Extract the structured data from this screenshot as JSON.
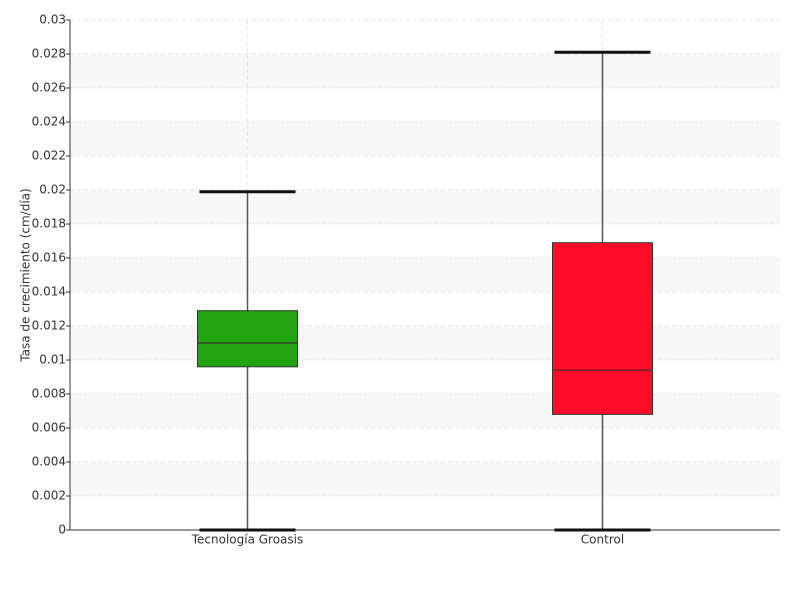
{
  "chart_data": {
    "type": "box",
    "y_label": "Tasa de crecimiento (cm/día)",
    "categories": [
      "Tecnología Groasis",
      "Control"
    ],
    "colors": [
      "#21a40f",
      "#ff0d28"
    ],
    "min": [
      0,
      0
    ],
    "q1": [
      0.0096,
      0.0068
    ],
    "median": [
      0.011,
      0.0094
    ],
    "q3": [
      0.0129,
      0.0169
    ],
    "max": [
      0.0199,
      0.0281
    ],
    "ylim": [
      0,
      0.03
    ],
    "yticks": [
      0,
      0.002,
      0.004,
      0.006,
      0.008,
      0.01,
      0.012,
      0.014,
      0.016,
      0.018,
      0.02,
      0.022,
      0.024,
      0.026,
      0.028,
      0.03
    ],
    "grid": true
  }
}
